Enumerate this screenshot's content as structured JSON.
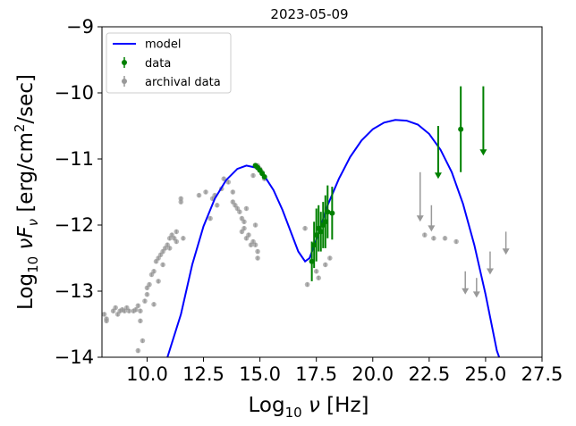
{
  "chart_data": {
    "type": "scatter",
    "title": "2023-05-09",
    "xlabel": "Log10 ν [Hz]",
    "ylabel": "Log10 νFν [erg/cm²/sec]",
    "xlim": [
      8.0,
      27.5
    ],
    "ylim": [
      -14,
      -9
    ],
    "xticks": [
      10.0,
      12.5,
      15.0,
      17.5,
      20.0,
      22.5,
      25.0,
      27.5
    ],
    "xtick_labels": [
      "10.0",
      "12.5",
      "15.0",
      "17.5",
      "20.0",
      "22.5",
      "25.0",
      "27.5"
    ],
    "yticks": [
      -14,
      -13,
      -12,
      -11,
      -10,
      -9
    ],
    "ytick_labels": [
      "−14",
      "−13",
      "−12",
      "−11",
      "−10",
      "−9"
    ],
    "grid": false,
    "legend_position": "top-left",
    "legend": [
      {
        "label": "model",
        "kind": "line",
        "color": "#0000ff"
      },
      {
        "label": "data",
        "kind": "errorbar",
        "color": "#008000"
      },
      {
        "label": "archival data",
        "kind": "errorbar",
        "color": "#999999"
      }
    ],
    "series": [
      {
        "name": "model",
        "kind": "line",
        "color": "#0000ff",
        "points": [
          [
            10.9,
            -14.0
          ],
          [
            11.5,
            -13.35
          ],
          [
            12.0,
            -12.6
          ],
          [
            12.5,
            -12.02
          ],
          [
            13.0,
            -11.6
          ],
          [
            13.5,
            -11.32
          ],
          [
            14.0,
            -11.15
          ],
          [
            14.4,
            -11.1
          ],
          [
            14.8,
            -11.13
          ],
          [
            15.2,
            -11.26
          ],
          [
            15.6,
            -11.47
          ],
          [
            16.0,
            -11.77
          ],
          [
            16.4,
            -12.13
          ],
          [
            16.7,
            -12.4
          ],
          [
            17.0,
            -12.55
          ],
          [
            17.2,
            -12.5
          ],
          [
            17.5,
            -12.22
          ],
          [
            18.0,
            -11.7
          ],
          [
            18.5,
            -11.3
          ],
          [
            19.0,
            -10.97
          ],
          [
            19.5,
            -10.72
          ],
          [
            20.0,
            -10.55
          ],
          [
            20.5,
            -10.45
          ],
          [
            21.0,
            -10.41
          ],
          [
            21.5,
            -10.42
          ],
          [
            22.0,
            -10.48
          ],
          [
            22.5,
            -10.62
          ],
          [
            23.0,
            -10.86
          ],
          [
            23.5,
            -11.2
          ],
          [
            24.0,
            -11.68
          ],
          [
            24.5,
            -12.3
          ],
          [
            25.0,
            -13.05
          ],
          [
            25.5,
            -13.9
          ],
          [
            25.6,
            -14.0
          ]
        ]
      },
      {
        "name": "data",
        "kind": "points",
        "color": "#008000",
        "points": [
          {
            "x": 14.8,
            "y": -11.1,
            "yerr": 0.02
          },
          {
            "x": 14.9,
            "y": -11.13,
            "yerr": 0.02
          },
          {
            "x": 15.0,
            "y": -11.17,
            "yerr": 0.02
          },
          {
            "x": 15.1,
            "y": -11.22,
            "yerr": 0.02
          },
          {
            "x": 15.2,
            "y": -11.27,
            "yerr": 0.02
          },
          {
            "x": 17.3,
            "y": -12.55,
            "yerr": 0.3
          },
          {
            "x": 17.4,
            "y": -12.3,
            "yerr": 0.35
          },
          {
            "x": 17.5,
            "y": -12.15,
            "yerr": 0.4
          },
          {
            "x": 17.6,
            "y": -12.05,
            "yerr": 0.35
          },
          {
            "x": 17.7,
            "y": -12.1,
            "yerr": 0.3
          },
          {
            "x": 17.8,
            "y": -12.0,
            "yerr": 0.35
          },
          {
            "x": 17.9,
            "y": -11.95,
            "yerr": 0.4
          },
          {
            "x": 18.0,
            "y": -11.8,
            "yerr": 0.4
          },
          {
            "x": 18.2,
            "y": -11.82,
            "yerr": 0.4
          },
          {
            "x": 23.9,
            "y": -10.55,
            "yerr": 0.65
          }
        ],
        "upper_limits": [
          {
            "x": 22.9,
            "y": -10.5,
            "to": -11.3
          },
          {
            "x": 24.9,
            "y": -9.9,
            "to": -10.95
          }
        ]
      },
      {
        "name": "archival data",
        "kind": "points",
        "color": "#999999",
        "points": [
          [
            8.1,
            -13.35
          ],
          [
            8.2,
            -13.42
          ],
          [
            8.2,
            -13.45
          ],
          [
            8.5,
            -13.3
          ],
          [
            8.6,
            -13.25
          ],
          [
            8.7,
            -13.35
          ],
          [
            8.8,
            -13.3
          ],
          [
            8.9,
            -13.28
          ],
          [
            9.0,
            -13.3
          ],
          [
            9.1,
            -13.25
          ],
          [
            9.2,
            -13.3
          ],
          [
            9.4,
            -13.3
          ],
          [
            9.5,
            -13.28
          ],
          [
            9.6,
            -13.22
          ],
          [
            9.7,
            -13.3
          ],
          [
            9.7,
            -13.45
          ],
          [
            9.8,
            -13.75
          ],
          [
            9.6,
            -13.9
          ],
          [
            9.9,
            -13.15
          ],
          [
            10.0,
            -13.05
          ],
          [
            10.0,
            -12.95
          ],
          [
            10.1,
            -12.9
          ],
          [
            10.2,
            -12.75
          ],
          [
            10.3,
            -12.7
          ],
          [
            10.3,
            -13.2
          ],
          [
            10.4,
            -12.55
          ],
          [
            10.5,
            -12.85
          ],
          [
            10.5,
            -12.5
          ],
          [
            10.6,
            -12.45
          ],
          [
            10.7,
            -12.4
          ],
          [
            10.7,
            -12.6
          ],
          [
            10.8,
            -12.35
          ],
          [
            10.9,
            -12.3
          ],
          [
            11.0,
            -12.2
          ],
          [
            11.0,
            -12.35
          ],
          [
            11.1,
            -12.15
          ],
          [
            11.2,
            -12.2
          ],
          [
            11.3,
            -12.1
          ],
          [
            11.3,
            -12.25
          ],
          [
            11.5,
            -11.6
          ],
          [
            11.5,
            -11.65
          ],
          [
            11.6,
            -12.2
          ],
          [
            12.3,
            -11.55
          ],
          [
            12.6,
            -11.5
          ],
          [
            12.8,
            -11.9
          ],
          [
            12.9,
            -11.6
          ],
          [
            13.0,
            -11.55
          ],
          [
            13.1,
            -11.7
          ],
          [
            13.3,
            -11.45
          ],
          [
            13.4,
            -11.3
          ],
          [
            13.6,
            -11.35
          ],
          [
            13.8,
            -11.5
          ],
          [
            13.8,
            -11.65
          ],
          [
            13.9,
            -11.7
          ],
          [
            14.0,
            -11.75
          ],
          [
            14.1,
            -11.8
          ],
          [
            14.2,
            -11.9
          ],
          [
            14.3,
            -11.95
          ],
          [
            14.3,
            -12.05
          ],
          [
            14.2,
            -12.1
          ],
          [
            14.4,
            -11.75
          ],
          [
            14.4,
            -12.2
          ],
          [
            14.5,
            -12.15
          ],
          [
            14.6,
            -12.3
          ],
          [
            14.7,
            -12.25
          ],
          [
            14.8,
            -12.0
          ],
          [
            14.8,
            -12.3
          ],
          [
            14.9,
            -12.4
          ],
          [
            14.9,
            -12.5
          ],
          [
            14.7,
            -11.25
          ],
          [
            14.9,
            -11.1
          ],
          [
            15.0,
            -11.15
          ],
          [
            15.1,
            -11.2
          ],
          [
            15.2,
            -11.3
          ],
          [
            17.0,
            -12.05
          ],
          [
            17.1,
            -12.9
          ],
          [
            17.5,
            -12.7
          ],
          [
            17.6,
            -12.8
          ],
          [
            17.9,
            -12.6
          ],
          [
            18.1,
            -12.5
          ],
          [
            22.3,
            -12.15
          ],
          [
            22.7,
            -12.2
          ],
          [
            23.2,
            -12.2
          ],
          [
            23.7,
            -12.25
          ]
        ],
        "upper_limits": [
          {
            "x": 22.1,
            "y": -11.2,
            "to": -11.95
          },
          {
            "x": 22.6,
            "y": -11.7,
            "to": -12.1
          },
          {
            "x": 24.1,
            "y": -12.7,
            "to": -13.05
          },
          {
            "x": 24.6,
            "y": -12.8,
            "to": -13.1
          },
          {
            "x": 25.2,
            "y": -12.4,
            "to": -12.75
          },
          {
            "x": 25.9,
            "y": -12.1,
            "to": -12.45
          }
        ]
      }
    ]
  }
}
